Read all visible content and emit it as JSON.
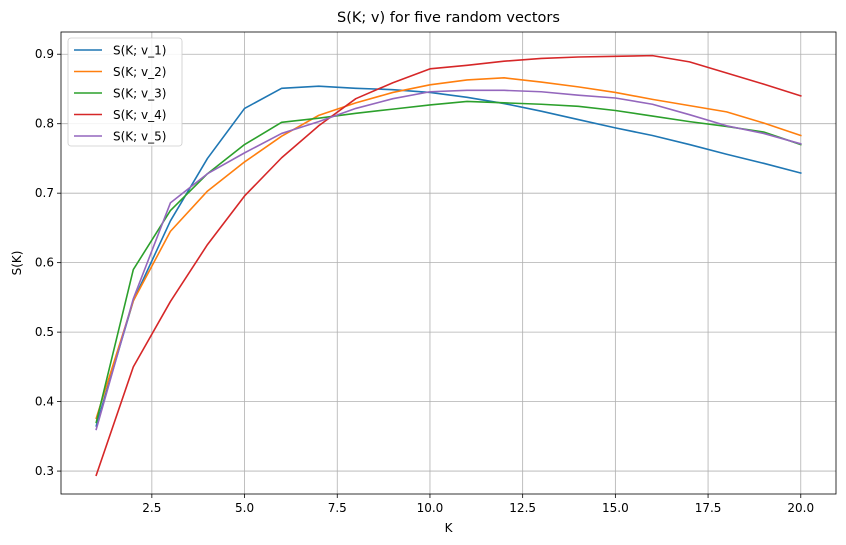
{
  "chart_data": {
    "type": "line",
    "title": "S(K; v) for five random vectors",
    "xlabel": "K",
    "ylabel": "S(K)",
    "xlim": [
      0.05,
      20.95
    ],
    "ylim": [
      0.267,
      0.932
    ],
    "xticks": [
      2.5,
      5.0,
      7.5,
      10.0,
      12.5,
      15.0,
      17.5,
      20.0
    ],
    "xtick_labels": [
      "2.5",
      "5.0",
      "7.5",
      "10.0",
      "12.5",
      "15.0",
      "17.5",
      "20.0"
    ],
    "yticks": [
      0.3,
      0.4,
      0.5,
      0.6,
      0.7,
      0.8,
      0.9
    ],
    "ytick_labels": [
      "0.3",
      "0.4",
      "0.5",
      "0.6",
      "0.7",
      "0.8",
      "0.9"
    ],
    "grid": true,
    "legend_position": "top-left",
    "x": [
      1,
      2,
      3,
      4,
      5,
      6,
      7,
      8,
      9,
      10,
      11,
      12,
      13,
      14,
      15,
      16,
      17,
      18,
      19,
      20
    ],
    "series": [
      {
        "name": "S(K; v_1)",
        "color": "#1f77b4",
        "values": [
          0.365,
          0.545,
          0.66,
          0.75,
          0.822,
          0.851,
          0.854,
          0.851,
          0.849,
          0.845,
          0.838,
          0.829,
          0.818,
          0.806,
          0.794,
          0.783,
          0.77,
          0.756,
          0.743,
          0.729
        ]
      },
      {
        "name": "S(K; v_2)",
        "color": "#ff7f0e",
        "values": [
          0.376,
          0.545,
          0.645,
          0.703,
          0.745,
          0.782,
          0.812,
          0.83,
          0.845,
          0.856,
          0.863,
          0.866,
          0.86,
          0.853,
          0.845,
          0.835,
          0.826,
          0.817,
          0.801,
          0.783
        ]
      },
      {
        "name": "S(K; v_3)",
        "color": "#2ca02c",
        "values": [
          0.37,
          0.59,
          0.675,
          0.728,
          0.77,
          0.802,
          0.808,
          0.815,
          0.821,
          0.827,
          0.832,
          0.83,
          0.828,
          0.825,
          0.819,
          0.811,
          0.803,
          0.796,
          0.788,
          0.77
        ]
      },
      {
        "name": "S(K; v_4)",
        "color": "#d62728",
        "values": [
          0.294,
          0.45,
          0.544,
          0.626,
          0.696,
          0.751,
          0.797,
          0.836,
          0.859,
          0.879,
          0.884,
          0.89,
          0.894,
          0.896,
          0.897,
          0.898,
          0.889,
          0.873,
          0.857,
          0.84
        ]
      },
      {
        "name": "S(K; v_5)",
        "color": "#9467bd",
        "values": [
          0.36,
          0.548,
          0.686,
          0.728,
          0.758,
          0.786,
          0.803,
          0.822,
          0.836,
          0.846,
          0.848,
          0.848,
          0.846,
          0.841,
          0.837,
          0.828,
          0.813,
          0.797,
          0.786,
          0.771
        ]
      }
    ]
  }
}
